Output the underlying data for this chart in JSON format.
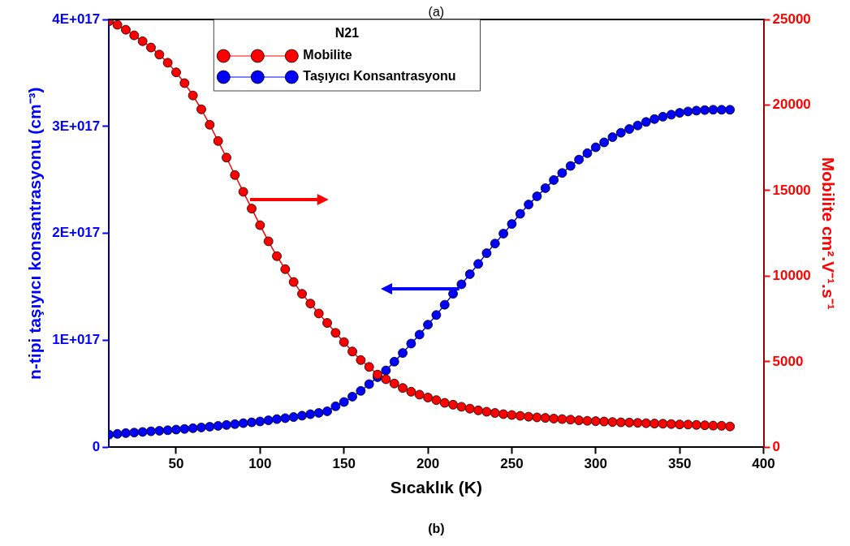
{
  "chart_data": {
    "type": "line",
    "xlabel": "Sıcaklık (K)",
    "ylabel": "n-tipi taşıyıcı konsantrasyonu (cm⁻³)",
    "y2label": "Mobilite cm².V⁻¹.s⁻¹",
    "legend_title": "N21",
    "legend": "top",
    "marker": "circle",
    "annotations": [
      "(a)",
      "(b)"
    ],
    "x": [
      10,
      15,
      20,
      25,
      30,
      35,
      40,
      45,
      50,
      55,
      60,
      65,
      70,
      75,
      80,
      85,
      90,
      95,
      100,
      105,
      110,
      115,
      120,
      125,
      130,
      135,
      140,
      145,
      150,
      155,
      160,
      165,
      170,
      175,
      180,
      185,
      190,
      195,
      200,
      205,
      210,
      215,
      220,
      225,
      230,
      235,
      240,
      245,
      250,
      255,
      260,
      265,
      270,
      275,
      280,
      285,
      290,
      295,
      300,
      305,
      310,
      315,
      320,
      325,
      330,
      335,
      340,
      345,
      350,
      355,
      360,
      365,
      370,
      375,
      380
    ],
    "xlim": [
      10,
      400
    ],
    "xticks": [
      50,
      100,
      150,
      200,
      250,
      300,
      350,
      400
    ],
    "ylim": [
      0,
      4e+17
    ],
    "yticks": [
      0,
      {
        "value": 1e+17,
        "label": "1E+017"
      },
      {
        "value": 2e+17,
        "label": "2E+017"
      },
      {
        "value": 3e+17,
        "label": "3E+017"
      },
      {
        "value": 4e+17,
        "label": "4E+017"
      }
    ],
    "y2lim": [
      0,
      25000
    ],
    "y2ticks": [
      0,
      5000,
      10000,
      15000,
      20000,
      25000
    ],
    "series": [
      {
        "name": "Mobilite",
        "color": "#ff0000",
        "axis": "y2",
        "values": [
          24900,
          24690,
          24400,
          24070,
          23730,
          23360,
          22950,
          22470,
          21910,
          21280,
          20560,
          19750,
          18850,
          17900,
          16930,
          15910,
          14930,
          13950,
          12980,
          12040,
          11170,
          10410,
          9660,
          8970,
          8400,
          7820,
          7270,
          6690,
          6150,
          5600,
          5100,
          4700,
          4250,
          3980,
          3730,
          3470,
          3250,
          3080,
          2910,
          2760,
          2600,
          2490,
          2370,
          2260,
          2160,
          2080,
          2010,
          1940,
          1890,
          1840,
          1790,
          1750,
          1720,
          1680,
          1650,
          1620,
          1580,
          1550,
          1530,
          1510,
          1480,
          1460,
          1450,
          1430,
          1410,
          1390,
          1380,
          1360,
          1340,
          1330,
          1310,
          1290,
          1270,
          1260,
          1220
        ]
      },
      {
        "name": "Taşıyıcı Konsantrasyonu",
        "color": "#0000ff",
        "axis": "y",
        "values": [
          1.19e+16,
          1.26e+16,
          1.33e+16,
          1.38e+16,
          1.44e+16,
          1.5e+16,
          1.55e+16,
          1.6e+16,
          1.66e+16,
          1.72e+16,
          1.79e+16,
          1.86e+16,
          1.93e+16,
          2.01e+16,
          2.09e+16,
          2.17e+16,
          2.26e+16,
          2.34e+16,
          2.42e+16,
          2.53e+16,
          2.64e+16,
          2.73e+16,
          2.83e+16,
          2.96e+16,
          3.1e+16,
          3.22e+16,
          3.37e+16,
          3.84e+16,
          4.24e+16,
          4.74e+16,
          5.28e+16,
          5.91e+16,
          6.56e+16,
          7.19e+16,
          8.01e+16,
          8.82e+16,
          9.7e+16,
          1.054e+17,
          1.147e+17,
          1.237e+17,
          1.333e+17,
          1.436e+17,
          1.524e+17,
          1.619e+17,
          1.715e+17,
          1.815e+17,
          1.905e+17,
          1.998e+17,
          2.088e+17,
          2.183e+17,
          2.27e+17,
          2.347e+17,
          2.423e+17,
          2.499e+17,
          2.565e+17,
          2.631e+17,
          2.69e+17,
          2.75e+17,
          2.805e+17,
          2.851e+17,
          2.9e+17,
          2.941e+17,
          2.976e+17,
          3.009e+17,
          3.042e+17,
          3.069e+17,
          3.091e+17,
          3.11e+17,
          3.127e+17,
          3.14e+17,
          3.148e+17,
          3.153e+17,
          3.156e+17,
          3.156e+17,
          3.156e+17
        ]
      }
    ]
  }
}
